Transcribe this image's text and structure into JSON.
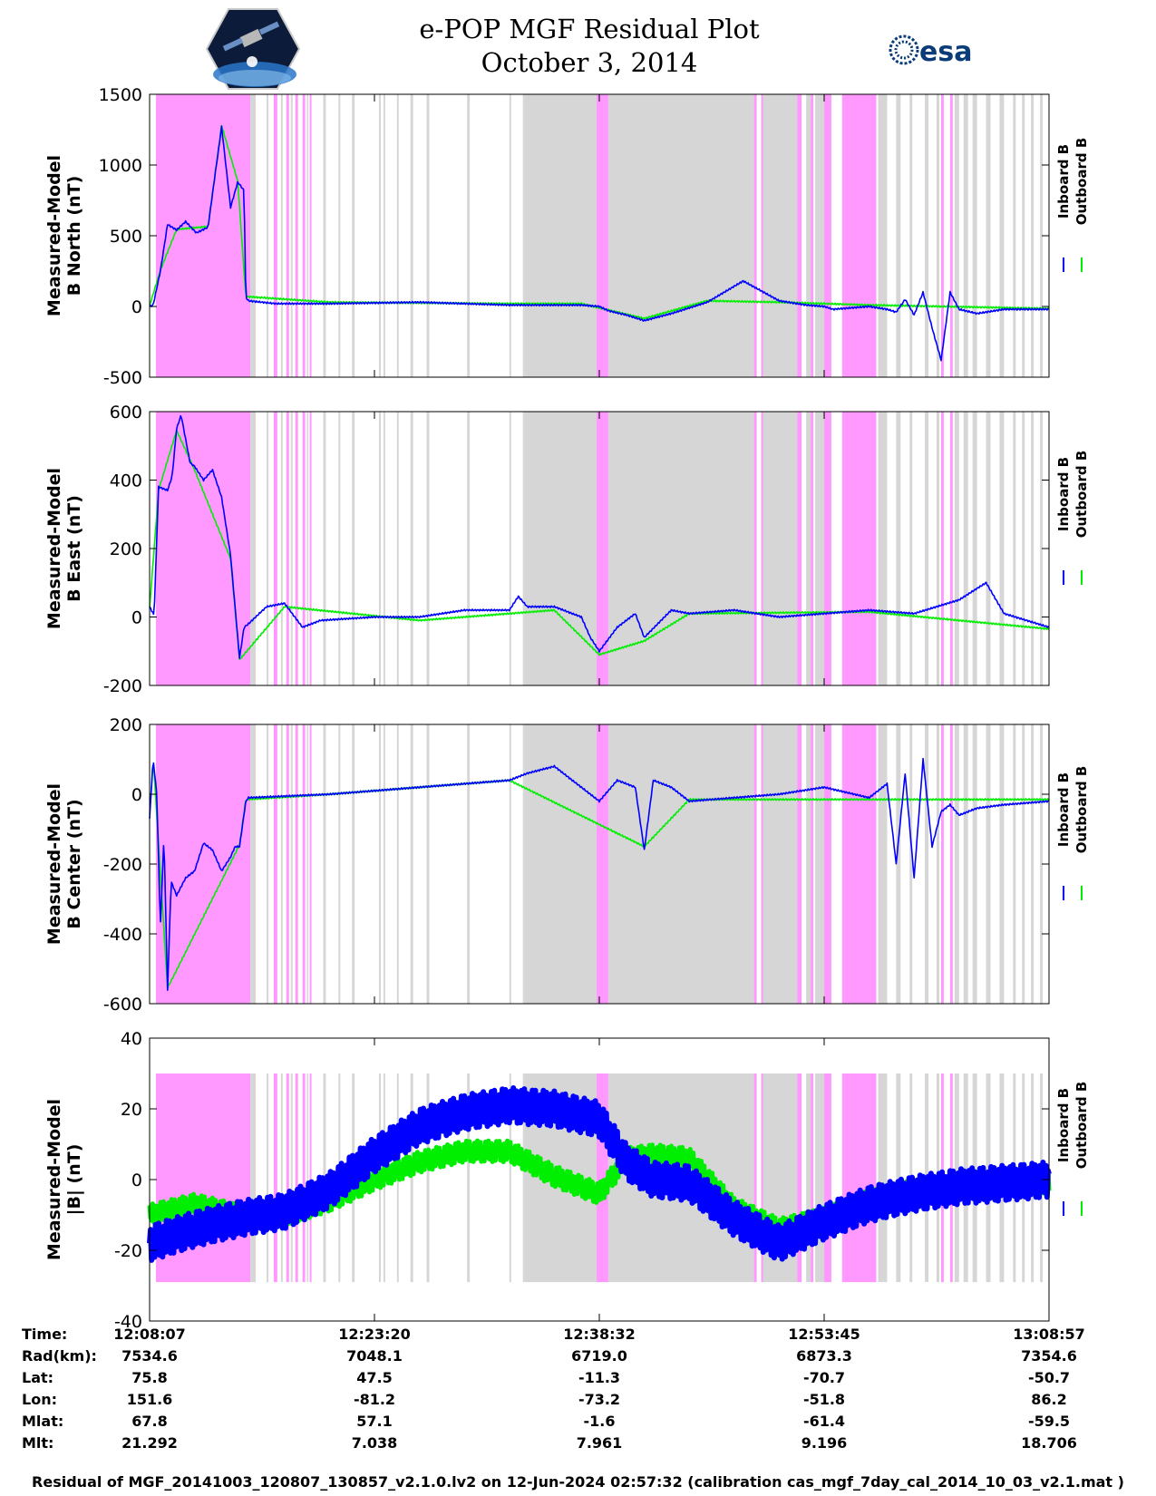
{
  "title": {
    "line1": "e-POP MGF Residual Plot",
    "line2": "October 3, 2014"
  },
  "logos": {
    "right_text": "esa",
    "left_icon": "cassiope-mission-icon",
    "right_icon": "esa-logo-icon"
  },
  "colors": {
    "inboard": "#0000ff",
    "outboard": "#00ee00",
    "magenta": "#ff99ff",
    "gray": "#d6d6d6"
  },
  "legend": {
    "inboard_label": "Inboard B",
    "outboard_label": "Outboard B"
  },
  "chart_data": [
    {
      "type": "line",
      "id": "north",
      "ylabel": [
        "Measured-Model",
        "B North (nT)"
      ],
      "ylim": [
        -500,
        1500
      ],
      "yticks": [
        "1500",
        "1000",
        "500",
        "0",
        "-500"
      ],
      "ytick_values": [
        1500,
        1000,
        500,
        0,
        -500
      ],
      "series": [
        {
          "name": "Inboard B",
          "values_t": [
            0,
            0.004,
            0.012,
            0.02,
            0.03,
            0.04,
            0.052,
            0.065,
            0.08,
            0.09,
            0.098,
            0.105,
            0.107,
            0.109,
            0.11,
            0.14,
            0.2,
            0.3,
            0.4,
            0.48,
            0.5,
            0.51,
            0.53,
            0.55,
            0.58,
            0.62,
            0.66,
            0.7,
            0.72,
            0.73,
            0.75,
            0.76,
            0.78,
            0.8,
            0.82,
            0.83,
            0.84,
            0.85,
            0.86,
            0.87,
            0.88,
            0.89,
            0.9,
            0.92,
            0.95,
            1
          ],
          "values": [
            0,
            10,
            250,
            580,
            540,
            600,
            520,
            560,
            1270,
            700,
            880,
            820,
            60,
            50,
            40,
            20,
            20,
            30,
            10,
            10,
            0,
            -30,
            -60,
            -100,
            -50,
            30,
            180,
            40,
            20,
            10,
            0,
            -20,
            -10,
            0,
            -20,
            -40,
            50,
            -60,
            100,
            -150,
            -380,
            100,
            -20,
            -50,
            -20,
            -20
          ]
        },
        {
          "name": "Outboard B",
          "values_t": [
            0,
            0.012,
            0.03,
            0.065,
            0.08,
            0.098,
            0.107,
            0.2,
            0.4,
            0.48,
            0.55,
            0.62,
            0.7,
            0.8,
            1
          ],
          "values": [
            5,
            255,
            545,
            565,
            1280,
            885,
            70,
            30,
            20,
            20,
            -85,
            40,
            30,
            10,
            -15
          ]
        }
      ]
    },
    {
      "type": "line",
      "id": "east",
      "ylabel": [
        "Measured-Model",
        "B East (nT)"
      ],
      "ylim": [
        -200,
        600
      ],
      "yticks": [
        "600",
        "400",
        "200",
        "0",
        "-200"
      ],
      "ytick_values": [
        600,
        400,
        200,
        0,
        -200
      ],
      "series": [
        {
          "name": "Inboard B",
          "values_t": [
            0,
            0.005,
            0.01,
            0.02,
            0.025,
            0.03,
            0.035,
            0.045,
            0.05,
            0.06,
            0.07,
            0.08,
            0.09,
            0.1,
            0.105,
            0.11,
            0.13,
            0.15,
            0.17,
            0.19,
            0.25,
            0.3,
            0.35,
            0.4,
            0.41,
            0.42,
            0.45,
            0.48,
            0.49,
            0.5,
            0.52,
            0.54,
            0.55,
            0.58,
            0.6,
            0.65,
            0.7,
            0.75,
            0.8,
            0.85,
            0.9,
            0.93,
            0.95,
            1
          ],
          "values": [
            30,
            5,
            380,
            370,
            410,
            550,
            590,
            450,
            440,
            400,
            430,
            350,
            180,
            -120,
            -30,
            -20,
            30,
            40,
            -30,
            -10,
            0,
            0,
            20,
            20,
            60,
            30,
            30,
            0,
            -60,
            -100,
            -30,
            10,
            -60,
            20,
            10,
            20,
            0,
            10,
            20,
            10,
            50,
            100,
            10,
            -30
          ]
        },
        {
          "name": "Outboard B",
          "values_t": [
            0,
            0.01,
            0.03,
            0.05,
            0.09,
            0.1,
            0.15,
            0.3,
            0.45,
            0.5,
            0.55,
            0.6,
            0.8,
            1
          ],
          "values": [
            25,
            370,
            545,
            430,
            170,
            -125,
            30,
            -10,
            20,
            -110,
            -70,
            10,
            15,
            -35
          ]
        }
      ]
    },
    {
      "type": "line",
      "id": "center",
      "ylabel": [
        "Measured-Model",
        "B Center (nT)"
      ],
      "ylim": [
        -600,
        200
      ],
      "yticks": [
        "200",
        "0",
        "-200",
        "-400",
        "-600"
      ],
      "ytick_values": [
        200,
        0,
        -200,
        -400,
        -600
      ],
      "series": [
        {
          "name": "Inboard B",
          "values_t": [
            0,
            0.004,
            0.008,
            0.012,
            0.016,
            0.02,
            0.024,
            0.03,
            0.04,
            0.05,
            0.06,
            0.07,
            0.08,
            0.09,
            0.095,
            0.1,
            0.107,
            0.11,
            0.2,
            0.3,
            0.4,
            0.42,
            0.45,
            0.48,
            0.5,
            0.52,
            0.54,
            0.55,
            0.56,
            0.58,
            0.6,
            0.7,
            0.75,
            0.8,
            0.82,
            0.83,
            0.84,
            0.85,
            0.86,
            0.87,
            0.88,
            0.89,
            0.9,
            0.92,
            0.95,
            1
          ],
          "values": [
            -70,
            100,
            0,
            -380,
            -120,
            -560,
            -250,
            -290,
            -240,
            -220,
            -140,
            -160,
            -220,
            -180,
            -150,
            -150,
            -20,
            -10,
            0,
            20,
            40,
            60,
            80,
            20,
            -20,
            40,
            20,
            -160,
            40,
            20,
            -20,
            0,
            20,
            -10,
            30,
            -200,
            60,
            -240,
            100,
            -150,
            -50,
            -30,
            -60,
            -40,
            -30,
            -20
          ]
        },
        {
          "name": "Outboard B",
          "values_t": [
            0,
            0.004,
            0.02,
            0.1,
            0.107,
            0.2,
            0.4,
            0.55,
            0.6,
            1
          ],
          "values": [
            -60,
            105,
            -555,
            -145,
            -15,
            0,
            40,
            -150,
            -15,
            -15
          ]
        }
      ]
    },
    {
      "type": "line",
      "id": "total",
      "ylabel": [
        "Measured-Model",
        "|B| (nT)"
      ],
      "ylim": [
        -40,
        40
      ],
      "yticks": [
        "40",
        "20",
        "0",
        "-20",
        "-40"
      ],
      "ytick_values": [
        40,
        20,
        0,
        -20,
        -40
      ],
      "series": [
        {
          "name": "Inboard B",
          "values_t": [
            0,
            0.05,
            0.1,
            0.15,
            0.2,
            0.25,
            0.3,
            0.35,
            0.4,
            0.45,
            0.5,
            0.53,
            0.56,
            0.6,
            0.65,
            0.7,
            0.75,
            0.8,
            0.85,
            0.9,
            0.95,
            1
          ],
          "values": [
            -18,
            -14,
            -11,
            -9,
            -3,
            7,
            15,
            19,
            21,
            20,
            17,
            5,
            0,
            -1,
            -11,
            -18,
            -12,
            -7,
            -4,
            -2,
            -1,
            0
          ]
        },
        {
          "name": "Outboard B",
          "values_t": [
            0,
            0.05,
            0.1,
            0.15,
            0.2,
            0.25,
            0.3,
            0.35,
            0.4,
            0.45,
            0.5,
            0.53,
            0.56,
            0.6,
            0.65,
            0.7,
            0.75,
            0.8,
            0.85,
            0.9,
            0.95,
            1
          ],
          "values": [
            -10,
            -7,
            -10,
            -10,
            -6,
            0,
            5,
            8,
            8,
            1,
            -4,
            6,
            7,
            6,
            -8,
            -14,
            -11,
            -6,
            -3,
            -2,
            -1,
            -1
          ]
        }
      ]
    }
  ],
  "background_bands": {
    "magenta": [
      [
        0.007,
        0.112
      ],
      [
        0.138,
        0.142
      ],
      [
        0.152,
        0.155
      ],
      [
        0.162,
        0.165
      ],
      [
        0.17,
        0.173
      ],
      [
        0.178,
        0.18
      ],
      [
        0.497,
        0.51
      ],
      [
        0.672,
        0.675
      ],
      [
        0.68,
        0.682
      ],
      [
        0.72,
        0.725
      ],
      [
        0.735,
        0.738
      ],
      [
        0.75,
        0.758
      ],
      [
        0.77,
        0.808
      ],
      [
        0.88,
        0.883
      ],
      [
        0.89,
        0.893
      ]
    ],
    "gray": [
      [
        0.112,
        0.118
      ],
      [
        0.13,
        0.132
      ],
      [
        0.146,
        0.148
      ],
      [
        0.157,
        0.159
      ],
      [
        0.175,
        0.176
      ],
      [
        0.193,
        0.196
      ],
      [
        0.21,
        0.212
      ],
      [
        0.225,
        0.228
      ],
      [
        0.255,
        0.257
      ],
      [
        0.26,
        0.262
      ],
      [
        0.275,
        0.277
      ],
      [
        0.29,
        0.293
      ],
      [
        0.308,
        0.311
      ],
      [
        0.353,
        0.356
      ],
      [
        0.4,
        0.402
      ],
      [
        0.415,
        0.417
      ],
      [
        0.417,
        0.497
      ],
      [
        0.51,
        0.672
      ],
      [
        0.68,
        0.72
      ],
      [
        0.73,
        0.735
      ],
      [
        0.74,
        0.75
      ],
      [
        0.81,
        0.82
      ],
      [
        0.83,
        0.835
      ],
      [
        0.845,
        0.848
      ],
      [
        0.862,
        0.866
      ],
      [
        0.875,
        0.878
      ],
      [
        0.895,
        0.9
      ],
      [
        0.905,
        0.91
      ],
      [
        0.915,
        0.92
      ],
      [
        0.93,
        0.935
      ],
      [
        0.945,
        0.95
      ],
      [
        0.96,
        0.963
      ],
      [
        0.97,
        0.973
      ],
      [
        0.98,
        0.983
      ],
      [
        0.99,
        0.993
      ]
    ]
  },
  "xticks": [
    "12:08:07",
    "12:23:20",
    "12:38:32",
    "12:53:45",
    "13:08:57"
  ],
  "info_table": {
    "rows": [
      {
        "label": "Time:",
        "values": [
          "12:08:07",
          "12:23:20",
          "12:38:32",
          "12:53:45",
          "13:08:57"
        ]
      },
      {
        "label": "Rad(km):",
        "values": [
          "7534.6",
          "7048.1",
          "6719.0",
          "6873.3",
          "7354.6"
        ]
      },
      {
        "label": "Lat:",
        "values": [
          "75.8",
          "47.5",
          "-11.3",
          "-70.7",
          "-50.7"
        ]
      },
      {
        "label": "Lon:",
        "values": [
          "151.6",
          "-81.2",
          "-73.2",
          "-51.8",
          "86.2"
        ]
      },
      {
        "label": "Mlat:",
        "values": [
          "67.8",
          "57.1",
          "-1.6",
          "-61.4",
          "-59.5"
        ]
      },
      {
        "label": "Mlt:",
        "values": [
          "21.292",
          "7.038",
          "7.961",
          "9.196",
          "18.706"
        ]
      }
    ]
  },
  "footer": "Residual of MGF_20141003_120807_130857_v2.1.0.lv2 on 12-Jun-2024 02:57:32 (calibration cas_mgf_7day_cal_2014_10_03_v2.1.mat )"
}
